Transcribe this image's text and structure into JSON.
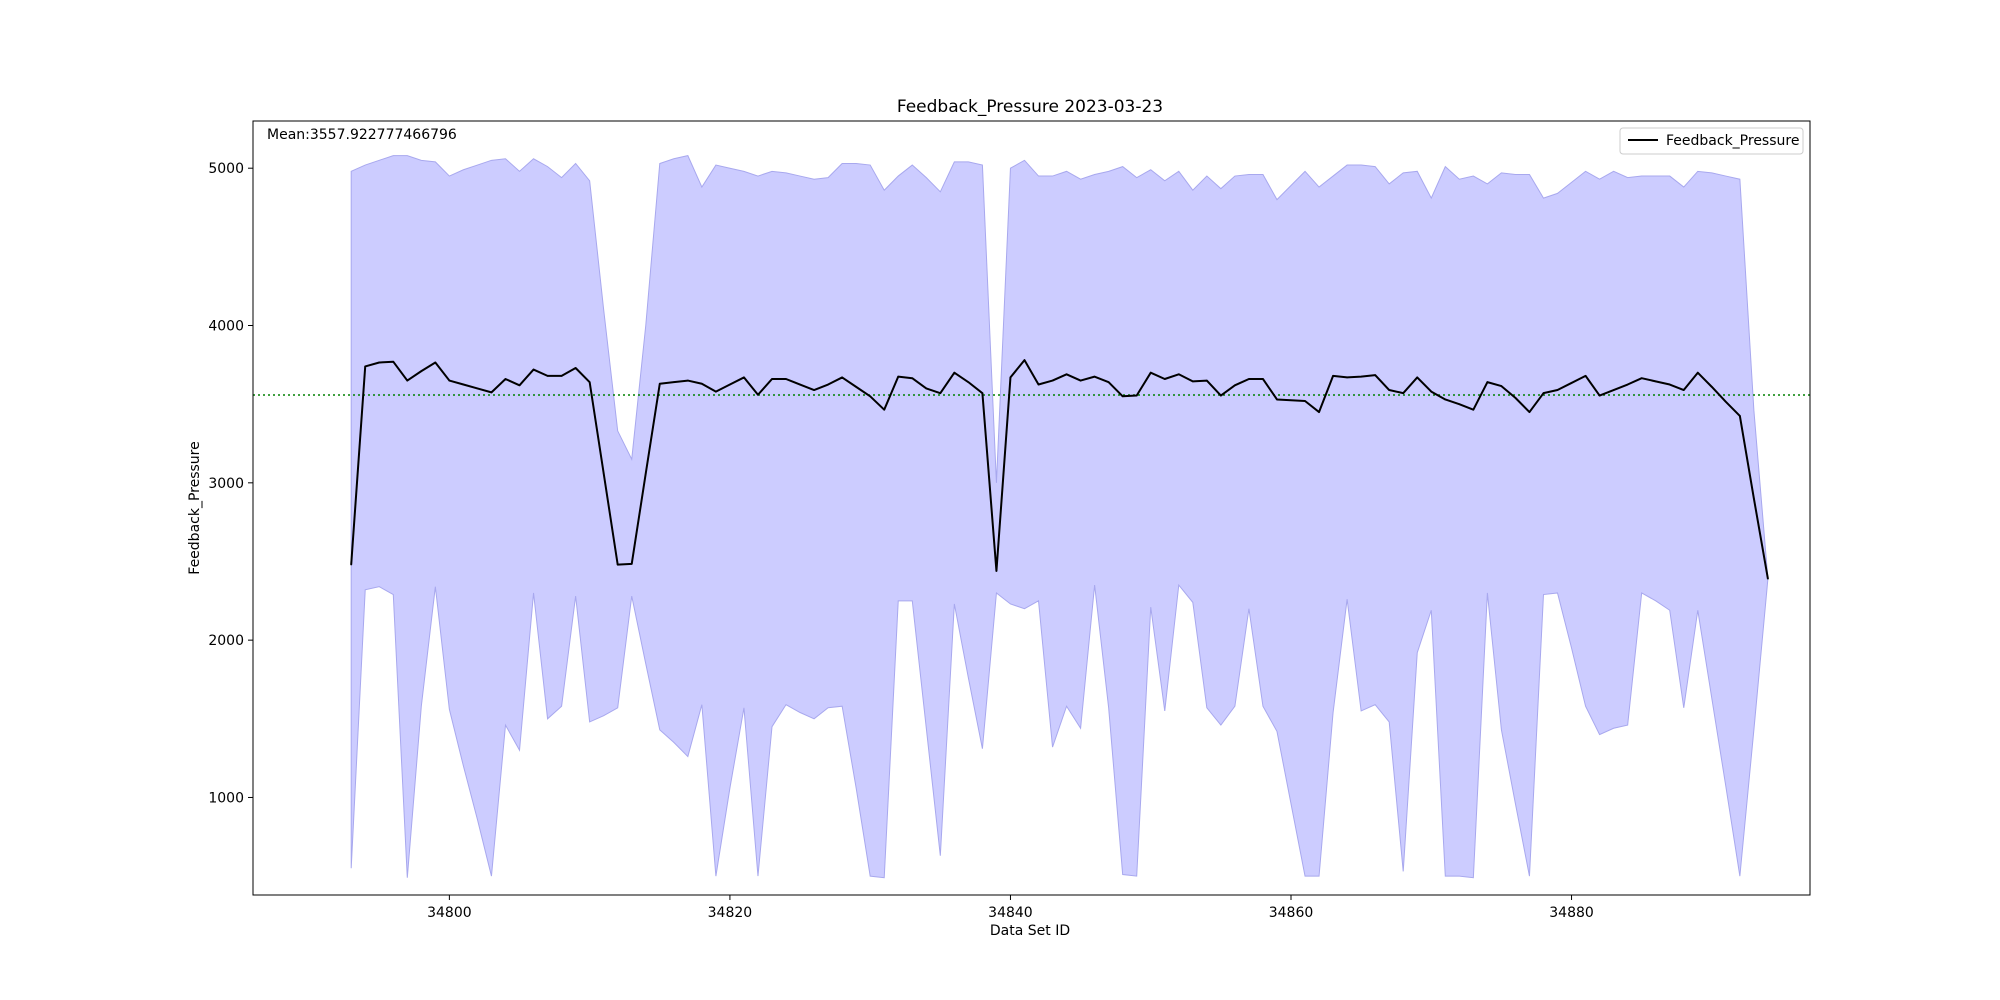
{
  "chart_data": {
    "type": "line",
    "title": "Feedback_Pressure 2023-03-23",
    "xlabel": "Data Set ID",
    "ylabel": "Feedback_Pressure",
    "xlim": [
      34786,
      34897
    ],
    "ylim": [
      380,
      5300
    ],
    "x_ticks": [
      34800,
      34820,
      34840,
      34860,
      34880
    ],
    "y_ticks": [
      1000,
      2000,
      3000,
      4000,
      5000
    ],
    "mean_annotation": "Mean:3557.922777466796",
    "mean_value": 3557.922777466796,
    "grid": false,
    "legend": {
      "position": "top-right",
      "entries": [
        "Feedback_Pressure"
      ]
    },
    "colors": {
      "line": "#000000",
      "band_fill": "#ccccff",
      "band_edge": "#a8a8ee",
      "mean_line": "#008000"
    },
    "x": [
      34793,
      34794,
      34795,
      34796,
      34797,
      34798,
      34799,
      34800,
      34801,
      34802,
      34803,
      34804,
      34805,
      34806,
      34807,
      34808,
      34809,
      34810,
      34811,
      34812,
      34813,
      34814,
      34815,
      34816,
      34817,
      34818,
      34819,
      34820,
      34821,
      34822,
      34823,
      34824,
      34825,
      34826,
      34827,
      34828,
      34829,
      34830,
      34831,
      34832,
      34833,
      34834,
      34835,
      34836,
      34837,
      34838,
      34839,
      34840,
      34841,
      34842,
      34843,
      34844,
      34845,
      34846,
      34847,
      34848,
      34849,
      34850,
      34851,
      34852,
      34853,
      34854,
      34855,
      34856,
      34857,
      34858,
      34859,
      34860,
      34861,
      34862,
      34863,
      34864,
      34865,
      34866,
      34867,
      34868,
      34869,
      34870,
      34871,
      34872,
      34873,
      34874,
      34875,
      34876,
      34877,
      34878,
      34879,
      34880,
      34881,
      34882,
      34883,
      34884,
      34885,
      34886,
      34887,
      34888,
      34889,
      34890,
      34891,
      34892,
      34893,
      34894
    ],
    "series": [
      {
        "name": "Feedback_Pressure",
        "values": [
          2480,
          3740,
          3765,
          3770,
          3650,
          3710,
          3765,
          3650,
          3625,
          3600,
          3575,
          3660,
          3620,
          3720,
          3680,
          3680,
          3730,
          3640,
          3060,
          2480,
          2485,
          3060,
          3630,
          3640,
          3650,
          3630,
          3580,
          3625,
          3670,
          3560,
          3660,
          3660,
          3625,
          3590,
          3625,
          3670,
          3610,
          3550,
          3465,
          3675,
          3665,
          3600,
          3570,
          3700,
          3640,
          3570,
          2440,
          3670,
          3780,
          3625,
          3650,
          3690,
          3650,
          3675,
          3640,
          3550,
          3555,
          3700,
          3660,
          3690,
          3645,
          3650,
          3555,
          3620,
          3660,
          3660,
          3530,
          3525,
          3520,
          3450,
          3680,
          3670,
          3675,
          3685,
          3590,
          3570,
          3670,
          3580,
          3530,
          3500,
          3465,
          3640,
          3615,
          3540,
          3450,
          3570,
          3590,
          3635,
          3680,
          3555,
          3590,
          3625,
          3665,
          3645,
          3625,
          3590,
          3700,
          3610,
          3515,
          3425,
          2900,
          2390
        ]
      }
    ],
    "band_upper": [
      4980,
      5020,
      5050,
      5080,
      5080,
      5050,
      5040,
      4950,
      4990,
      5020,
      5050,
      5060,
      4980,
      5060,
      5010,
      4940,
      5030,
      4920,
      4100,
      3330,
      3150,
      4000,
      5030,
      5060,
      5080,
      4880,
      5020,
      5000,
      4980,
      4950,
      4980,
      4970,
      4950,
      4930,
      4940,
      5030,
      5030,
      5020,
      4860,
      4950,
      5020,
      4940,
      4850,
      5040,
      5040,
      5020,
      3000,
      5000,
      5050,
      4950,
      4950,
      4980,
      4930,
      4960,
      4980,
      5010,
      4940,
      4990,
      4920,
      4980,
      4860,
      4950,
      4870,
      4950,
      4960,
      4960,
      4800,
      4890,
      4980,
      4880,
      4950,
      5020,
      5020,
      5010,
      4900,
      4970,
      4980,
      4810,
      5010,
      4930,
      4950,
      4900,
      4970,
      4960,
      4960,
      4810,
      4840,
      4910,
      4980,
      4930,
      4980,
      4940,
      4950,
      4950,
      4950,
      4880,
      4980,
      4970,
      4950,
      4930,
      3460,
      2390
    ],
    "band_lower": [
      550,
      2320,
      2340,
      2290,
      490,
      1580,
      2340,
      1560,
      1200,
      860,
      500,
      1460,
      1300,
      2300,
      1500,
      1580,
      2280,
      1480,
      1520,
      1570,
      2280,
      1850,
      1430,
      1350,
      1260,
      1590,
      500,
      1060,
      1570,
      500,
      1450,
      1590,
      1540,
      1500,
      1570,
      1580,
      1060,
      500,
      490,
      2250,
      2250,
      1440,
      630,
      2230,
      1760,
      1310,
      2300,
      2230,
      2200,
      2250,
      1320,
      1580,
      1440,
      2350,
      1570,
      510,
      500,
      2210,
      1550,
      2350,
      2240,
      1570,
      1460,
      1580,
      2200,
      1580,
      1420,
      960,
      500,
      500,
      1540,
      2260,
      1550,
      1590,
      1480,
      530,
      1920,
      2190,
      500,
      500,
      490,
      2300,
      1430,
      960,
      500,
      2290,
      2300,
      1950,
      1580,
      1400,
      1440,
      1460,
      2300,
      2250,
      2190,
      1570,
      2190,
      1630,
      1070,
      500,
      1430,
      2390
    ]
  }
}
